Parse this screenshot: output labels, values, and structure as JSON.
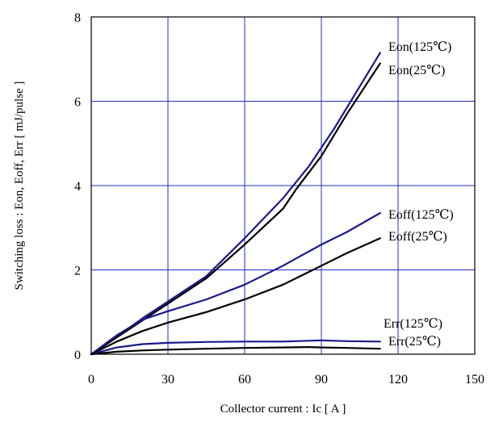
{
  "chart_data": {
    "type": "line",
    "title": "",
    "xlabel": "Collector current : Ic [ A ]",
    "ylabel": "Switching loss : Eon, Eoff, Err [ mJ/pulse ]",
    "xlim": [
      0,
      150
    ],
    "ylim": [
      0,
      8
    ],
    "xticks": [
      "0",
      "30",
      "60",
      "90",
      "120",
      "150"
    ],
    "yticks": [
      "0",
      "2",
      "4",
      "6",
      "8"
    ],
    "grid": true,
    "legend": "none",
    "colors": {
      "hot": "#1a1a8c",
      "room": "#000000",
      "grid": "#1f2fbf"
    },
    "series": [
      {
        "name": "Eon(125℃)",
        "temp": "hot",
        "x": [
          0,
          10,
          20,
          30,
          45,
          60,
          75,
          85,
          95,
          105,
          113
        ],
        "y": [
          0,
          0.42,
          0.85,
          1.25,
          1.85,
          2.75,
          3.7,
          4.45,
          5.35,
          6.35,
          7.15
        ]
      },
      {
        "name": "Eon(25℃)",
        "temp": "room",
        "x": [
          0,
          10,
          20,
          30,
          45,
          60,
          75,
          80,
          90,
          100,
          113
        ],
        "y": [
          0,
          0.4,
          0.8,
          1.2,
          1.8,
          2.6,
          3.45,
          3.9,
          4.7,
          5.7,
          6.9
        ]
      },
      {
        "name": "Eoff(125℃)",
        "temp": "hot",
        "x": [
          0,
          10,
          20,
          30,
          45,
          60,
          75,
          90,
          100,
          113
        ],
        "y": [
          0,
          0.45,
          0.82,
          1.02,
          1.3,
          1.65,
          2.1,
          2.6,
          2.9,
          3.35
        ]
      },
      {
        "name": "Eoff(25℃)",
        "temp": "room",
        "x": [
          0,
          10,
          20,
          30,
          45,
          60,
          75,
          90,
          100,
          113
        ],
        "y": [
          0,
          0.3,
          0.55,
          0.75,
          1.0,
          1.3,
          1.65,
          2.1,
          2.4,
          2.75
        ]
      },
      {
        "name": "Err(125℃)",
        "temp": "hot",
        "x": [
          0,
          10,
          20,
          30,
          45,
          60,
          75,
          85,
          90,
          100,
          113
        ],
        "y": [
          0,
          0.16,
          0.24,
          0.27,
          0.29,
          0.3,
          0.3,
          0.32,
          0.33,
          0.31,
          0.3
        ]
      },
      {
        "name": "Err(25℃)",
        "temp": "room",
        "x": [
          0,
          10,
          20,
          30,
          45,
          60,
          75,
          85,
          90,
          100,
          113
        ],
        "y": [
          0,
          0.06,
          0.09,
          0.11,
          0.13,
          0.15,
          0.16,
          0.17,
          0.16,
          0.15,
          0.13
        ]
      }
    ]
  }
}
